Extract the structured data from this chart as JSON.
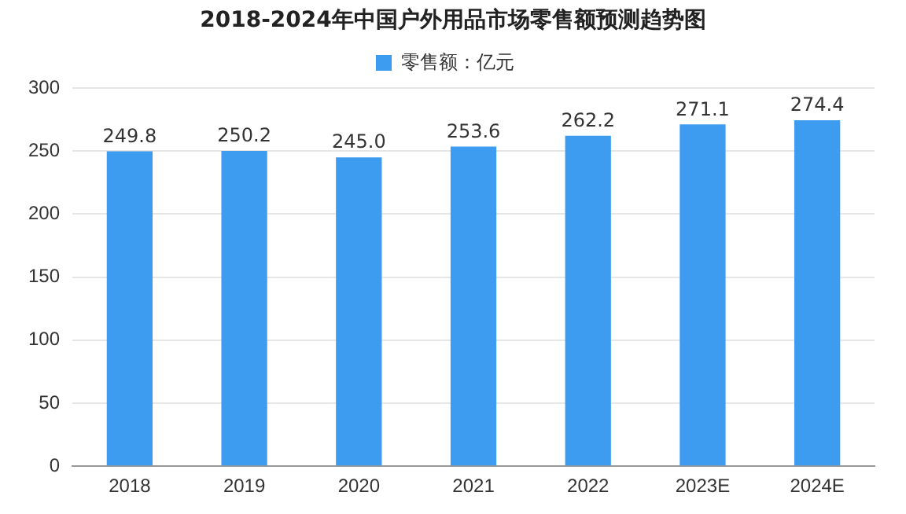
{
  "chart_data": {
    "type": "bar",
    "title": "2018-2024年中国户外用品市场零售额预测趋势图",
    "categories": [
      "2018",
      "2019",
      "2020",
      "2021",
      "2022",
      "2023E",
      "2024E"
    ],
    "series": [
      {
        "name": "零售额：亿元",
        "color": "#3d9cf0",
        "values": [
          249.8,
          250.2,
          245.0,
          253.6,
          262.2,
          271.1,
          274.4
        ],
        "value_labels": [
          "249.8",
          "250.2",
          "245.0",
          "253.6",
          "262.2",
          "271.1",
          "274.4"
        ]
      }
    ],
    "ylim": [
      0,
      300
    ],
    "yticks": [
      0,
      50,
      100,
      150,
      200,
      250,
      300
    ],
    "grid": "y",
    "legend": "top"
  }
}
